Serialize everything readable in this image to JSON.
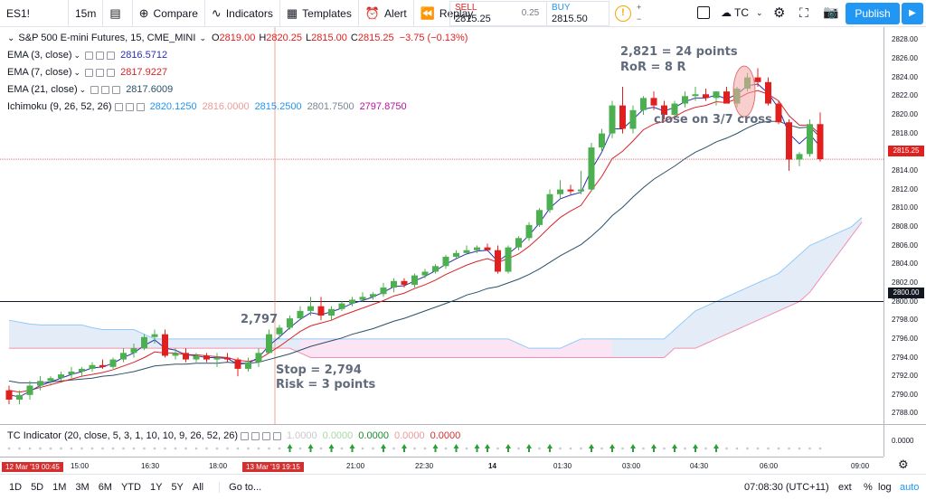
{
  "topbar": {
    "symbol": "ES1!",
    "interval": "15m",
    "compare": "Compare",
    "indicators": "Indicators",
    "templates": "Templates",
    "alert": "Alert",
    "replay": "Replay",
    "sell_label": "SELL",
    "sell_price": "2815.25",
    "spread": "0.25",
    "buy_label": "BUY",
    "buy_price": "2815.50",
    "layout_name": "TC",
    "publish": "Publish"
  },
  "legend": {
    "title": "S&P 500 E-mini Futures, 15, CME_MINI",
    "open_label": "O",
    "open": "2819.00",
    "high_label": "H",
    "high": "2820.25",
    "low_label": "L",
    "low": "2815.00",
    "close_label": "C",
    "close": "2815.25",
    "change": "−3.75 (−0.13%)",
    "ema3_label": "EMA (3, close)",
    "ema3": "2816.5712",
    "ema7_label": "EMA (7, close)",
    "ema7": "2817.9227",
    "ema21_label": "EMA (21, close)",
    "ema21": "2817.6009",
    "ichi_label": "Ichimoku (9, 26, 52, 26)",
    "ichi_v1": "2820.1250",
    "ichi_v2": "2816.0000",
    "ichi_v3": "2815.2500",
    "ichi_v4": "2801.7500",
    "ichi_v5": "2797.8750"
  },
  "colors": {
    "up": "#4caf50",
    "down": "#e0201f",
    "ema3": "#2c2fb0",
    "ema7": "#d8232a",
    "ema21": "#2a5068",
    "ichi1": "#2196f3",
    "ichi2": "#ef9a9a",
    "ichi3": "#2196f3",
    "ichi4": "#7b8794",
    "ichi5": "#b7129d"
  },
  "annotations": {
    "target": "2,821 = 24 points",
    "ror": "RoR = 8 R",
    "close_note": "close on 3/7 cross",
    "entry": "2,797",
    "stop": "Stop = 2,794",
    "risk": "Risk = 3 points"
  },
  "price_axis": {
    "ticks": [
      "2828.00",
      "2826.00",
      "2824.00",
      "2822.00",
      "2820.00",
      "2818.00",
      "2816.00",
      "2814.00",
      "2812.00",
      "2810.00",
      "2808.00",
      "2806.00",
      "2804.00",
      "2802.00",
      "2800.00",
      "2798.00",
      "2796.00",
      "2794.00",
      "2792.00",
      "2790.00",
      "2788.00"
    ],
    "last_price": "2815.25",
    "line_price": "2800.00"
  },
  "tc_indicator": {
    "label": "TC Indicator (20, close, 5, 3, 1, 10, 10, 9, 26, 52, 26)",
    "v1": "1.0000",
    "v2": "0.0000",
    "v3": "0.0000",
    "v4": "0.0000",
    "v5": "0.0000",
    "axis_value": "0.0000"
  },
  "time_axis": {
    "start_tag": "12 Mar '19   00:45",
    "cursor_tag": "13 Mar '19   19:15",
    "labels": [
      "15:00",
      "16:30",
      "18:00",
      "21:00",
      "22:30",
      "14",
      "01:30",
      "03:00",
      "04:30",
      "06:00",
      "09:00"
    ]
  },
  "bottombar": {
    "ranges": [
      "1D",
      "5D",
      "1M",
      "3M",
      "6M",
      "YTD",
      "1Y",
      "5Y",
      "All"
    ],
    "goto": "Go to...",
    "clock": "07:08:30 (UTC+11)",
    "ext": "ext",
    "pct": "%",
    "log": "log",
    "auto": "auto"
  },
  "chart_data": {
    "type": "candlestick",
    "ylim": [
      2787,
      2829
    ],
    "candles": [
      [
        2790.5,
        2791,
        2789,
        2789.5
      ],
      [
        2789.5,
        2790.5,
        2789,
        2790
      ],
      [
        2790,
        2791.5,
        2789.5,
        2791
      ],
      [
        2791,
        2792,
        2790.5,
        2791.5
      ],
      [
        2791.5,
        2792,
        2791,
        2791.8
      ],
      [
        2791.8,
        2792.5,
        2791.5,
        2792.2
      ],
      [
        2792.2,
        2793,
        2791.8,
        2792.5
      ],
      [
        2792.5,
        2793,
        2792,
        2792.8
      ],
      [
        2792.8,
        2793.5,
        2792.5,
        2793.2
      ],
      [
        2793.2,
        2793.8,
        2792.8,
        2793
      ],
      [
        2793,
        2794,
        2792.8,
        2793.8
      ],
      [
        2793.8,
        2795,
        2793.5,
        2794.5
      ],
      [
        2794.5,
        2795.5,
        2794,
        2795
      ],
      [
        2795,
        2796.5,
        2794.8,
        2796.2
      ],
      [
        2796.2,
        2797,
        2795.5,
        2796.5
      ],
      [
        2796.5,
        2797,
        2794,
        2794.2
      ],
      [
        2794.2,
        2795,
        2793.8,
        2794.5
      ],
      [
        2794.5,
        2795,
        2793.5,
        2793.8
      ],
      [
        2793.8,
        2794.5,
        2793.5,
        2794.2
      ],
      [
        2794.2,
        2794.5,
        2793.5,
        2793.8
      ],
      [
        2793.8,
        2794.5,
        2793,
        2794
      ],
      [
        2794,
        2794.5,
        2793.5,
        2793.8
      ],
      [
        2793.8,
        2794,
        2792,
        2792.8
      ],
      [
        2792.8,
        2794,
        2792.5,
        2793.5
      ],
      [
        2793.5,
        2795,
        2793,
        2794.5
      ],
      [
        2794.5,
        2797,
        2794.5,
        2796.5
      ],
      [
        2796.5,
        2797.5,
        2796,
        2797.2
      ],
      [
        2797.2,
        2798.5,
        2797,
        2798.2
      ],
      [
        2798.2,
        2799.5,
        2798,
        2799
      ],
      [
        2799,
        2800.5,
        2798.5,
        2799.5
      ],
      [
        2799.5,
        2800.5,
        2798,
        2798.5
      ],
      [
        2798.5,
        2799.5,
        2798,
        2799.2
      ],
      [
        2799.2,
        2800,
        2799,
        2799.8
      ],
      [
        2799.8,
        2800.5,
        2799.5,
        2800.2
      ],
      [
        2800.2,
        2801,
        2800,
        2800.5
      ],
      [
        2800.5,
        2801,
        2800.2,
        2800.8
      ],
      [
        2800.8,
        2802,
        2800.5,
        2801.5
      ],
      [
        2801.5,
        2802.5,
        2801,
        2802.2
      ],
      [
        2802.2,
        2802.5,
        2801.5,
        2801.8
      ],
      [
        2801.8,
        2803,
        2801.5,
        2802.8
      ],
      [
        2802.8,
        2803.5,
        2802.5,
        2803.2
      ],
      [
        2803.2,
        2804,
        2803,
        2803.8
      ],
      [
        2803.8,
        2805,
        2803.5,
        2804.8
      ],
      [
        2804.8,
        2805.5,
        2804.5,
        2805.2
      ],
      [
        2805.2,
        2806,
        2805,
        2805.5
      ],
      [
        2805.5,
        2806,
        2805.2,
        2805.8
      ],
      [
        2805.8,
        2806.2,
        2805.5,
        2805.5
      ],
      [
        2805.5,
        2806,
        2803,
        2803.2
      ],
      [
        2803.2,
        2806,
        2803,
        2805.8
      ],
      [
        2805.8,
        2807,
        2805.5,
        2806.8
      ],
      [
        2806.8,
        2808.5,
        2806.5,
        2808.2
      ],
      [
        2808.2,
        2810,
        2808,
        2809.8
      ],
      [
        2809.8,
        2812,
        2809.5,
        2811.5
      ],
      [
        2811.5,
        2813,
        2811,
        2812
      ],
      [
        2812,
        2812.5,
        2811.5,
        2811.8
      ],
      [
        2811.8,
        2814,
        2811.5,
        2812
      ],
      [
        2812,
        2817,
        2811.8,
        2816.5
      ],
      [
        2816.5,
        2818.5,
        2816,
        2818
      ],
      [
        2818,
        2821.5,
        2817.5,
        2821
      ],
      [
        2821,
        2823,
        2818,
        2818.5
      ],
      [
        2818.5,
        2821,
        2818,
        2820.5
      ],
      [
        2820.5,
        2822,
        2820,
        2821.8
      ],
      [
        2821.8,
        2822.5,
        2820.5,
        2821
      ],
      [
        2821,
        2821.5,
        2819.5,
        2820
      ],
      [
        2820,
        2821.5,
        2819.5,
        2821.2
      ],
      [
        2821.2,
        2822.5,
        2820.8,
        2822
      ],
      [
        2822,
        2823,
        2821.5,
        2822.2
      ],
      [
        2822.2,
        2822.8,
        2821.5,
        2821.8
      ],
      [
        2821.8,
        2822.5,
        2821,
        2822.5
      ],
      [
        2822.5,
        2823,
        2821.5,
        2821.2
      ],
      [
        2821.2,
        2823,
        2820.8,
        2822.8
      ],
      [
        2822.8,
        2824.5,
        2822.5,
        2824
      ],
      [
        2824,
        2825,
        2823,
        2823.5
      ],
      [
        2823.5,
        2824,
        2821,
        2821.2
      ],
      [
        2821.2,
        2821.5,
        2819,
        2819.2
      ],
      [
        2819.2,
        2819.5,
        2814,
        2815.2
      ],
      [
        2815.2,
        2816,
        2814.5,
        2815.8
      ],
      [
        2815.8,
        2819.5,
        2815.5,
        2819
      ],
      [
        2819,
        2820.25,
        2815,
        2815.25
      ]
    ],
    "ema3": [
      2790,
      2789.8,
      2790.4,
      2791,
      2791.4,
      2791.8,
      2792.2,
      2792.5,
      2792.9,
      2793,
      2793.4,
      2794,
      2794.5,
      2795.3,
      2795.9,
      2795,
      2794.8,
      2794.3,
      2794.2,
      2794,
      2794,
      2793.9,
      2793.3,
      2793.4,
      2794,
      2795.3,
      2796.2,
      2797.2,
      2798.1,
      2798.8,
      2798.6,
      2798.9,
      2799.3,
      2799.8,
      2800.1,
      2800.5,
      2801,
      2801.6,
      2801.7,
      2802.2,
      2802.7,
      2803.3,
      2804,
      2804.6,
      2805.1,
      2805.4,
      2805.5,
      2804.3,
      2805.1,
      2806,
      2807.1,
      2808.4,
      2810,
      2811,
      2811.4,
      2811.7,
      2814.1,
      2816,
      2818.5,
      2818.5,
      2819.5,
      2820.6,
      2820.8,
      2820.4,
      2820.8,
      2821.4,
      2821.8,
      2821.8,
      2822.1,
      2821.7,
      2822.2,
      2823.1,
      2823.3,
      2822.3,
      2820.7,
      2818,
      2816.9,
      2817.9,
      2816.6
    ],
    "ema7": [
      2790.5,
      2790.3,
      2790.5,
      2790.8,
      2791.1,
      2791.4,
      2791.7,
      2792,
      2792.2,
      2792.4,
      2792.7,
      2793.1,
      2793.5,
      2794,
      2794.6,
      2794.5,
      2794.5,
      2794.3,
      2794.3,
      2794.2,
      2794.1,
      2794,
      2793.7,
      2793.6,
      2793.8,
      2794.5,
      2795.2,
      2796,
      2796.8,
      2797.4,
      2797.7,
      2798,
      2798.5,
      2798.9,
      2799.3,
      2799.7,
      2800.1,
      2800.6,
      2800.9,
      2801.4,
      2801.8,
      2802.3,
      2802.9,
      2803.4,
      2803.9,
      2804.3,
      2804.6,
      2804.2,
      2804.6,
      2805.1,
      2805.9,
      2806.9,
      2808,
      2809,
      2809.7,
      2810.3,
      2811.9,
      2813.4,
      2815.3,
      2816.1,
      2817.2,
      2818.4,
      2819,
      2819.3,
      2819.8,
      2820.4,
      2820.8,
      2821,
      2821.4,
      2821.3,
      2821.7,
      2822.3,
      2822.6,
      2822.2,
      2821.5,
      2819.9,
      2818.9,
      2818.9,
      2817.9
    ],
    "ema21": [
      2791.5,
      2791.3,
      2791.3,
      2791.3,
      2791.4,
      2791.5,
      2791.6,
      2791.7,
      2791.8,
      2792,
      2792.1,
      2792.3,
      2792.5,
      2792.8,
      2793.1,
      2793.2,
      2793.3,
      2793.3,
      2793.4,
      2793.4,
      2793.4,
      2793.5,
      2793.4,
      2793.4,
      2793.5,
      2793.8,
      2794.1,
      2794.4,
      2794.8,
      2795.2,
      2795.5,
      2795.8,
      2796.1,
      2796.5,
      2796.8,
      2797.1,
      2797.5,
      2797.9,
      2798.2,
      2798.6,
      2799,
      2799.4,
      2799.8,
      2800.2,
      2800.7,
      2801,
      2801.4,
      2801.6,
      2802,
      2802.4,
      2802.9,
      2803.5,
      2804.2,
      2804.9,
      2805.5,
      2806.1,
      2807,
      2808,
      2809.2,
      2810.1,
      2811.2,
      2812.2,
      2813.1,
      2813.8,
      2814.5,
      2815.3,
      2816,
      2816.5,
      2817.1,
      2817.5,
      2818,
      2818.6,
      2819.1,
      2819.3,
      2819.3,
      2818.9,
      2818.6,
      2818.7,
      2817.6
    ],
    "kumo_a": [
      2795,
      2795,
      2795,
      2795,
      2795,
      2795,
      2795,
      2795,
      2795,
      2795,
      2795,
      2795,
      2795,
      2795,
      2795,
      2795,
      2795,
      2795,
      2795,
      2795,
      2795,
      2795,
      2795,
      2795,
      2795,
      2795,
      2795,
      2795,
      2794.5,
      2794,
      2794,
      2794,
      2794,
      2794,
      2794,
      2794,
      2794,
      2794,
      2794,
      2794,
      2794,
      2794,
      2794,
      2794,
      2794,
      2794,
      2794,
      2794,
      2794,
      2794,
      2794,
      2794,
      2794,
      2794,
      2794,
      2794,
      2794,
      2794,
      2794,
      2794,
      2794,
      2794,
      2794,
      2794,
      2795,
      2795,
      2795,
      2795.5,
      2796,
      2796.5,
      2797,
      2797.5,
      2798,
      2798.5,
      2799,
      2799.5,
      2800,
      2801,
      2802.5,
      2804,
      2805.5,
      2807,
      2808.5
    ],
    "kumo_b": [
      2798,
      2797.8,
      2797.6,
      2797.5,
      2797.5,
      2797.5,
      2797.5,
      2797.5,
      2797.2,
      2797,
      2797,
      2797,
      2797,
      2796.5,
      2796,
      2796,
      2796,
      2796,
      2796,
      2796,
      2796,
      2796,
      2796,
      2796,
      2796,
      2796,
      2796,
      2796,
      2796,
      2796,
      2796,
      2796,
      2796,
      2796,
      2796,
      2796,
      2796,
      2796,
      2796,
      2796,
      2796,
      2796,
      2796,
      2796,
      2796,
      2796,
      2796,
      2796,
      2796,
      2795.5,
      2795,
      2795,
      2795,
      2795,
      2795.5,
      2796,
      2796,
      2796,
      2796,
      2796,
      2796,
      2796,
      2796,
      2796,
      2797,
      2798,
      2799,
      2799.5,
      2800,
      2800.5,
      2801,
      2801.5,
      2802,
      2802.5,
      2803,
      2804,
      2805,
      2806,
      2806.5,
      2807,
      2807.5,
      2808,
      2809
    ]
  }
}
